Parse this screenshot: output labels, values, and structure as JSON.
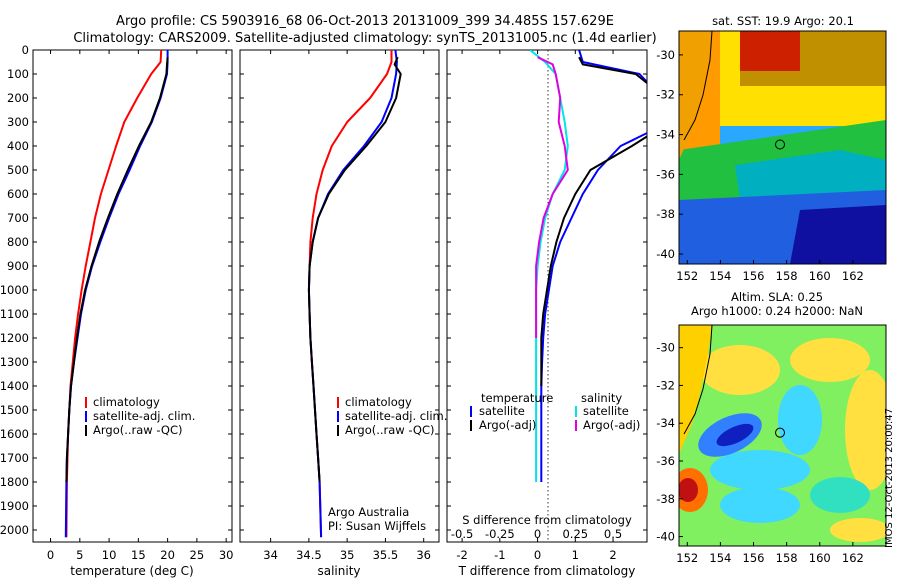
{
  "header": {
    "line1": "Argo profile: CS 5903916_68 06-Oct-2013 20131009_399 34.485S 157.629E",
    "line2": "Climatology: CARS2009. Satellite-adjusted climatology: synTS_20131005.nc (1.4d earlier)"
  },
  "colors": {
    "climatology": "#ff0000",
    "satellite": "#0000ff",
    "argo": "#000000",
    "salinity_satellite": "#00e5e5",
    "salinity_argo": "#e000e0"
  },
  "chart_data": [
    {
      "type": "line",
      "xlabel": "temperature (deg C)",
      "ylabel": "",
      "xlim": [
        -3,
        31
      ],
      "ylim": [
        2050,
        0
      ],
      "x_ticks": [
        0,
        5,
        10,
        15,
        20,
        25,
        30
      ],
      "y_ticks": [
        0,
        100,
        200,
        300,
        400,
        500,
        600,
        700,
        800,
        900,
        1000,
        1100,
        1200,
        1300,
        1400,
        1500,
        1600,
        1700,
        1800,
        1900,
        2000
      ],
      "legend": [
        "climatology",
        "satellite-adj. clim.",
        "Argo(..raw -QC)"
      ],
      "legend_position": "lower-middle",
      "series": [
        {
          "name": "climatology",
          "color": "#ff0000",
          "x": [
            18.9,
            18.8,
            17.2,
            14.8,
            12.6,
            11.2,
            9.9,
            8.6,
            7.6,
            6.8,
            6.0,
            5.3,
            4.7,
            4.2,
            3.8,
            3.4,
            3.2,
            3.0,
            2.9,
            2.8,
            2.7
          ],
          "y": [
            0,
            50,
            100,
            200,
            300,
            400,
            500,
            600,
            700,
            800,
            900,
            1000,
            1100,
            1200,
            1300,
            1400,
            1500,
            1600,
            1700,
            1800,
            2030
          ]
        },
        {
          "name": "satellite-adj. clim.",
          "color": "#0000ff",
          "x": [
            20.0,
            20.0,
            19.9,
            18.8,
            17.3,
            15.3,
            13.5,
            11.6,
            10.0,
            8.5,
            7.1,
            6.0,
            5.2,
            4.6,
            4.0,
            3.5,
            3.2,
            3.0,
            2.8,
            2.7,
            2.6
          ],
          "y": [
            0,
            50,
            100,
            200,
            300,
            400,
            500,
            600,
            700,
            800,
            900,
            1000,
            1100,
            1200,
            1300,
            1400,
            1500,
            1600,
            1700,
            1800,
            2030
          ]
        },
        {
          "name": "Argo(..raw -QC)",
          "color": "#000000",
          "x": [
            20.0,
            19.9,
            19.8,
            18.7,
            17.2,
            15.1,
            13.2,
            11.4,
            9.8,
            8.3,
            7.0,
            5.9,
            5.1,
            4.5,
            4.0,
            3.5,
            3.2,
            3.0,
            2.8,
            2.7
          ],
          "y": [
            30,
            60,
            100,
            200,
            300,
            400,
            500,
            600,
            700,
            800,
            900,
            1000,
            1100,
            1200,
            1300,
            1400,
            1500,
            1600,
            1700,
            1800
          ]
        }
      ]
    },
    {
      "type": "line",
      "xlabel": "salinity",
      "ylabel": "",
      "xlim": [
        33.6,
        36.2
      ],
      "ylim": [
        2050,
        0
      ],
      "x_ticks": [
        34,
        34.5,
        35,
        35.5,
        36
      ],
      "legend": [
        "climatology",
        "satellite-adj. clim.",
        "Argo(..raw -QC)"
      ],
      "legend_position": "lower-right",
      "annotations": [
        "Argo Australia",
        "PI: Susan Wijffels"
      ],
      "series": [
        {
          "name": "climatology",
          "color": "#ff0000",
          "x": [
            35.58,
            35.58,
            35.52,
            35.3,
            35.0,
            34.8,
            34.68,
            34.6,
            34.55,
            34.52,
            34.51,
            34.5,
            34.51,
            34.52,
            34.54,
            34.56,
            34.58,
            34.6,
            34.62,
            34.64,
            34.66
          ],
          "y": [
            0,
            50,
            100,
            200,
            300,
            400,
            500,
            600,
            700,
            800,
            900,
            1000,
            1100,
            1200,
            1300,
            1400,
            1500,
            1600,
            1700,
            1800,
            2030
          ]
        },
        {
          "name": "satellite-adj. clim.",
          "color": "#0000ff",
          "x": [
            35.63,
            35.65,
            35.64,
            35.58,
            35.45,
            35.22,
            34.95,
            34.75,
            34.62,
            34.55,
            34.51,
            34.5,
            34.51,
            34.52,
            34.54,
            34.56,
            34.58,
            34.6,
            34.62,
            34.64,
            34.66
          ],
          "y": [
            0,
            50,
            100,
            200,
            300,
            400,
            500,
            600,
            700,
            800,
            900,
            1000,
            1100,
            1200,
            1300,
            1400,
            1500,
            1600,
            1700,
            1800,
            2030
          ]
        },
        {
          "name": "Argo(..raw -QC)",
          "color": "#000000",
          "x": [
            35.66,
            35.62,
            35.7,
            35.64,
            35.5,
            35.25,
            34.97,
            34.76,
            34.62,
            34.55,
            34.51,
            34.5,
            34.51,
            34.52,
            34.54,
            34.56,
            34.58,
            34.6,
            34.62,
            34.64
          ],
          "y": [
            30,
            60,
            100,
            200,
            300,
            400,
            500,
            600,
            700,
            800,
            900,
            1000,
            1100,
            1200,
            1300,
            1400,
            1500,
            1600,
            1700,
            1800
          ]
        }
      ]
    },
    {
      "type": "line",
      "xlabel": "T difference from climatology",
      "xlabel_top": "S difference from climatology",
      "ylabel": "",
      "xlim": [
        -2.4,
        2.9
      ],
      "ylim": [
        2050,
        0
      ],
      "x_ticks": [
        -2,
        -1,
        0,
        1,
        2
      ],
      "x_ticks_top": [
        "-0.5",
        "-0.25",
        "0",
        "0.25",
        "0.5"
      ],
      "legend_temperature_title": "temperature",
      "legend_salinity_title": "salinity",
      "legend": [
        "satellite",
        "Argo(-adj)",
        "satellite",
        "Argo(-adj)"
      ],
      "legend_position": "lower-middle",
      "series": [
        {
          "name": "satellite",
          "quantity": "temperature",
          "color": "#0000ff",
          "x": [
            1.1,
            1.2,
            2.7,
            3.3,
            3.5,
            2.2,
            1.6,
            1.2,
            0.9,
            0.6,
            0.4,
            0.3,
            0.2,
            0.15,
            0.12,
            0.1,
            0.1,
            0.1,
            0.1,
            0.1
          ],
          "y": [
            0,
            50,
            100,
            200,
            300,
            400,
            500,
            600,
            700,
            800,
            900,
            1000,
            1100,
            1200,
            1300,
            1400,
            1500,
            1600,
            1700,
            1800
          ]
        },
        {
          "name": "Argo(-adj)",
          "quantity": "temperature",
          "color": "#000000",
          "x": [
            1.1,
            1.2,
            2.6,
            3.4,
            3.5,
            2.5,
            1.4,
            1.0,
            0.7,
            0.5,
            0.35,
            0.25,
            0.15,
            0.1,
            0.1,
            0.1
          ],
          "y": [
            30,
            60,
            100,
            200,
            300,
            400,
            500,
            600,
            700,
            800,
            900,
            1000,
            1100,
            1200,
            1300,
            1400
          ]
        },
        {
          "name": "satellite",
          "quantity": "salinity",
          "color": "#00e5e5",
          "x": [
            -0.05,
            0.05,
            0.12,
            0.15,
            0.18,
            0.2,
            0.18,
            0.1,
            0.05,
            0.02,
            0.0,
            -0.01,
            -0.01,
            -0.01,
            -0.01,
            -0.01,
            -0.01,
            -0.01,
            -0.01,
            -0.01
          ],
          "y": [
            0,
            50,
            100,
            200,
            300,
            400,
            500,
            600,
            700,
            800,
            900,
            1000,
            1100,
            1200,
            1300,
            1400,
            1500,
            1600,
            1700,
            1800
          ]
        },
        {
          "name": "Argo(-adj)",
          "quantity": "salinity",
          "color": "#e000e0",
          "x": [
            0.0,
            0.1,
            0.12,
            0.15,
            0.14,
            0.18,
            0.2,
            0.1,
            0.04,
            0.01,
            -0.01,
            -0.01,
            -0.01,
            -0.01
          ],
          "y": [
            30,
            60,
            100,
            200,
            300,
            400,
            500,
            600,
            700,
            800,
            900,
            1000,
            1100,
            1200
          ]
        }
      ]
    },
    {
      "type": "heatmap",
      "title": "sat. SST: 19.9  Argo: 20.1",
      "xlim": [
        151.5,
        164
      ],
      "ylim": [
        -40.5,
        -28.8
      ],
      "x_ticks": [
        152,
        154,
        156,
        158,
        160,
        162
      ],
      "y_ticks": [
        -30,
        -32,
        -34,
        -36,
        -38,
        -40
      ],
      "marker": {
        "x": 157.6,
        "y": -34.5
      }
    },
    {
      "type": "heatmap",
      "title_line1": "Altim. SLA: 0.25",
      "title_line2": "Argo h1000: 0.24  h2000: NaN",
      "xlim": [
        151.5,
        164
      ],
      "ylim": [
        -40.5,
        -28.8
      ],
      "x_ticks": [
        152,
        154,
        156,
        158,
        160,
        162
      ],
      "y_ticks": [
        -30,
        -32,
        -34,
        -36,
        -38,
        -40
      ],
      "marker": {
        "x": 157.6,
        "y": -34.5
      }
    }
  ],
  "footer": {
    "stamp": "IMOS 12-Oct-2013 20:00:47"
  }
}
